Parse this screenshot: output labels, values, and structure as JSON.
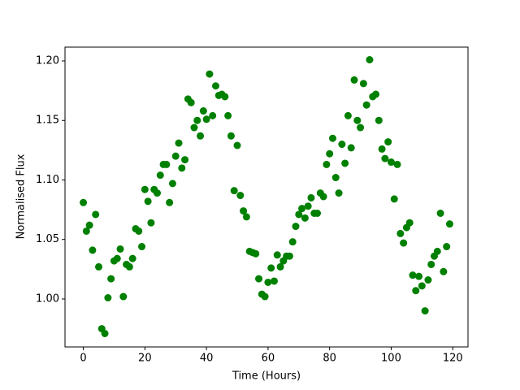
{
  "chart_data": {
    "type": "scatter",
    "xlabel": "Time (Hours)",
    "ylabel": "Normalised Flux",
    "color": "#008000",
    "x": [
      0,
      1,
      2,
      3,
      4,
      5,
      6,
      7,
      8,
      9,
      10,
      11,
      12,
      13,
      14,
      15,
      16,
      17,
      18,
      19,
      20,
      21,
      22,
      23,
      24,
      25,
      26,
      27,
      28,
      29,
      30,
      31,
      32,
      33,
      34,
      35,
      36,
      37,
      38,
      39,
      40,
      41,
      42,
      43,
      44,
      45,
      46,
      47,
      48,
      49,
      50,
      51,
      52,
      53,
      54,
      55,
      56,
      57,
      58,
      59,
      60,
      61,
      62,
      63,
      64,
      65,
      66,
      67,
      68,
      69,
      70,
      71,
      72,
      73,
      74,
      75,
      76,
      77,
      78,
      79,
      80,
      81,
      82,
      83,
      84,
      85,
      86,
      87,
      88,
      89,
      90,
      91,
      92,
      93,
      94,
      95,
      96,
      97,
      98,
      99,
      100,
      101,
      102,
      103,
      104,
      105,
      106,
      107,
      108,
      109,
      110,
      111,
      112,
      113,
      114,
      115,
      116,
      117,
      118,
      119
    ],
    "values": [
      1.081,
      1.057,
      1.062,
      1.041,
      1.071,
      1.027,
      0.975,
      0.971,
      1.001,
      1.017,
      1.032,
      1.034,
      1.042,
      1.002,
      1.029,
      1.027,
      1.034,
      1.059,
      1.057,
      1.044,
      1.092,
      1.082,
      1.064,
      1.092,
      1.089,
      1.104,
      1.113,
      1.113,
      1.081,
      1.097,
      1.12,
      1.131,
      1.11,
      1.117,
      1.168,
      1.165,
      1.144,
      1.15,
      1.137,
      1.158,
      1.151,
      1.189,
      1.154,
      1.179,
      1.171,
      1.172,
      1.17,
      1.154,
      1.137,
      1.091,
      1.129,
      1.087,
      1.074,
      1.069,
      1.04,
      1.039,
      1.038,
      1.017,
      1.004,
      1.002,
      1.014,
      1.026,
      1.015,
      1.037,
      1.027,
      1.032,
      1.036,
      1.036,
      1.048,
      1.061,
      1.071,
      1.076,
      1.068,
      1.078,
      1.085,
      1.072,
      1.072,
      1.089,
      1.086,
      1.113,
      1.122,
      1.135,
      1.102,
      1.089,
      1.13,
      1.114,
      1.154,
      1.127,
      1.184,
      1.15,
      1.144,
      1.181,
      1.163,
      1.201,
      1.17,
      1.172,
      1.15,
      1.126,
      1.118,
      1.132,
      1.115,
      1.084,
      1.113,
      1.055,
      1.047,
      1.06,
      1.064,
      1.02,
      1.007,
      1.019,
      1.011,
      0.99,
      1.016,
      1.029,
      1.036,
      1.04,
      1.072,
      1.023,
      1.044,
      1.063
    ],
    "xlim": [
      -5.95,
      124.95
    ],
    "xticks": [
      0,
      20,
      40,
      60,
      80,
      100,
      120
    ],
    "ylim": [
      0.9597,
      1.2116
    ],
    "yticks": [
      {
        "value": 1,
        "label": "1.00"
      },
      1.05,
      {
        "value": 1.1,
        "label": "1.10"
      },
      1.15,
      {
        "value": 1.2,
        "label": "1.20"
      }
    ],
    "grid": false
  }
}
